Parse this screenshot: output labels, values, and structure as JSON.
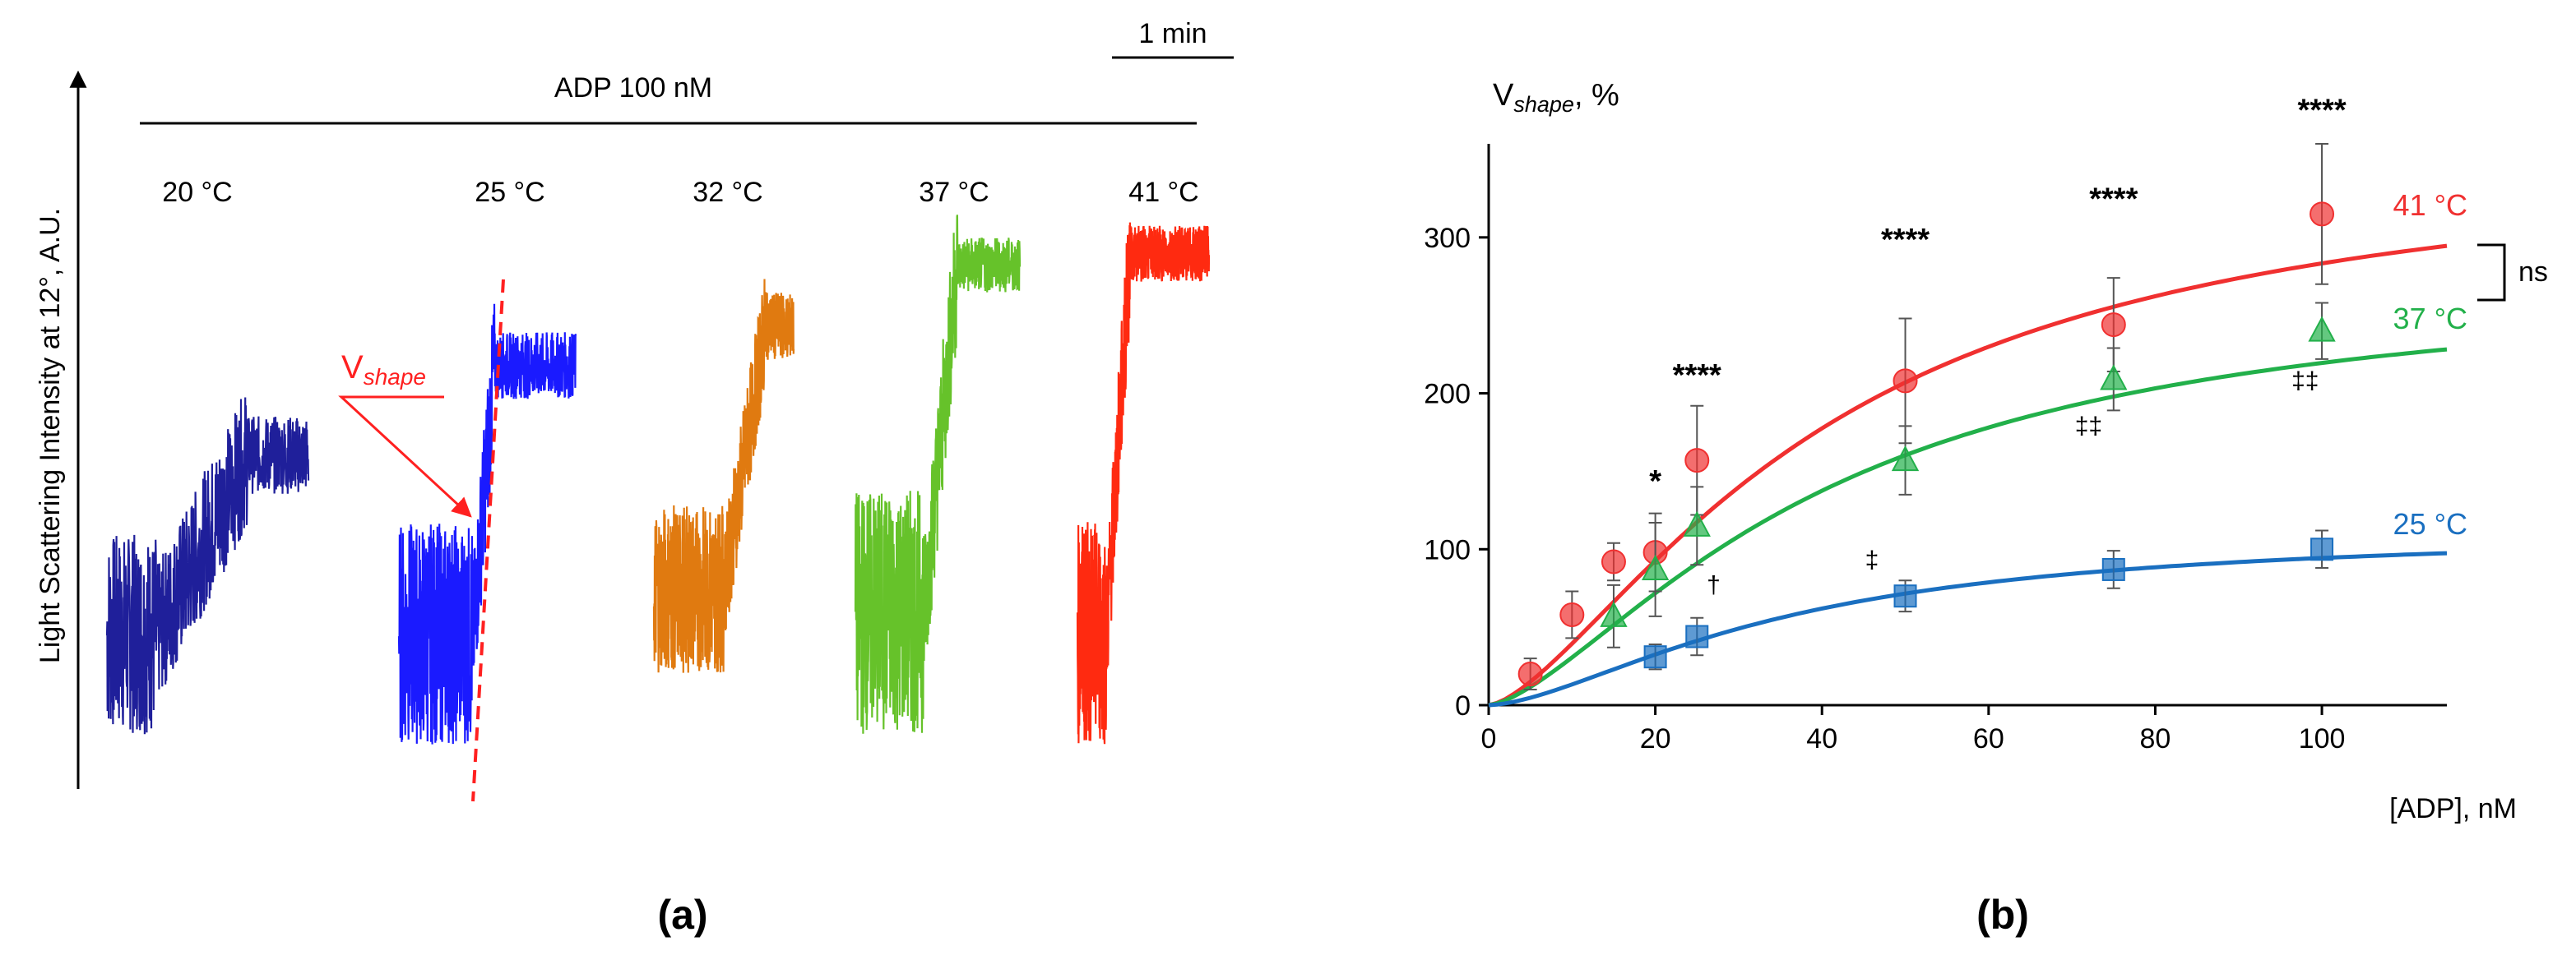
{
  "panel_a": {
    "label": "(a)",
    "y_axis_label": "Light Scattering Intensity  at 12°, A.U.",
    "stimulus_label": "ADP 100 nM",
    "scale_bar_label": "1 min",
    "vshape_label_main": "V",
    "vshape_label_sub": "shape"
  },
  "panel_b": {
    "label": "(b)",
    "ns_label": "ns"
  },
  "chart_data": [
    {
      "type": "line",
      "title": "",
      "description_units": "arbitrary light-scattering units",
      "ylabel": "Light Scattering Intensity  at 12°, A.U.",
      "annotation": "ADP 100 nM",
      "series": [
        {
          "name": "20 °C",
          "color": "#1f1f9a",
          "baseline": 0.3,
          "plateau": 0.62,
          "onset": 0.25,
          "rise_duration": 0.45,
          "noise_before": 0.18,
          "noise_after": 0.07
        },
        {
          "name": "25 °C",
          "color": "#1a1aff",
          "baseline": 0.3,
          "plateau": 0.78,
          "onset": 0.42,
          "rise_duration": 0.12,
          "noise_before": 0.2,
          "noise_after": 0.06
        },
        {
          "name": "32 °C",
          "color": "#e07a10",
          "baseline": 0.38,
          "plateau": 0.85,
          "onset": 0.5,
          "rise_duration": 0.3,
          "noise_before": 0.15,
          "noise_after": 0.06
        },
        {
          "name": "37 °C",
          "color": "#66c22a",
          "baseline": 0.34,
          "plateau": 0.96,
          "onset": 0.42,
          "rise_duration": 0.2,
          "noise_before": 0.22,
          "noise_after": 0.05
        },
        {
          "name": "41 °C",
          "color": "#ff2a10",
          "baseline": 0.3,
          "plateau": 0.98,
          "onset": 0.22,
          "rise_duration": 0.18,
          "noise_before": 0.2,
          "noise_after": 0.05
        }
      ]
    },
    {
      "type": "scatter",
      "title": "",
      "ylabel_main": "V",
      "ylabel_sub": "shape",
      "ylabel_suffix": ", %",
      "xlabel": "[ADP], nM",
      "xlim": [
        0,
        115
      ],
      "ylim": [
        0,
        360
      ],
      "xticks": [
        0,
        20,
        40,
        60,
        80,
        100
      ],
      "yticks": [
        0,
        100,
        200,
        300
      ],
      "series": [
        {
          "name": "41 °C",
          "color": "#f03030",
          "marker": "circle",
          "x": [
            5,
            10,
            15,
            20,
            25,
            50,
            75,
            100
          ],
          "y": [
            20,
            58,
            92,
            98,
            157,
            208,
            244,
            315
          ],
          "err": [
            10,
            15,
            12,
            25,
            35,
            40,
            30,
            45
          ],
          "fit_vmax": 355,
          "fit_k": 40,
          "fit_n": 1.5
        },
        {
          "name": "37 °C",
          "color": "#22b04a",
          "marker": "triangle",
          "x": [
            15,
            20,
            25,
            50,
            75,
            100
          ],
          "y": [
            57,
            87,
            115,
            157,
            209,
            240
          ],
          "err": [
            20,
            30,
            25,
            22,
            20,
            18
          ],
          "fit_vmax": 275,
          "fit_k": 40,
          "fit_n": 1.5
        },
        {
          "name": "25 °C",
          "color": "#1a6fc0",
          "marker": "square",
          "x": [
            20,
            25,
            50,
            75,
            100
          ],
          "y": [
            31,
            44,
            70,
            87,
            100
          ],
          "err": [
            8,
            12,
            10,
            12,
            12
          ],
          "fit_vmax": 112,
          "fit_k": 35,
          "fit_n": 1.6
        }
      ],
      "annotations": [
        {
          "text": "****",
          "x": 100,
          "y": 375,
          "kind": "star"
        },
        {
          "text": "****",
          "x": 75,
          "y": 318,
          "kind": "star"
        },
        {
          "text": "****",
          "x": 50,
          "y": 292,
          "kind": "star"
        },
        {
          "text": "****",
          "x": 25,
          "y": 205,
          "kind": "star"
        },
        {
          "text": "*",
          "x": 20,
          "y": 137,
          "kind": "star"
        },
        {
          "text": "‡",
          "x": 46,
          "y": 88,
          "kind": "dagger"
        },
        {
          "text": "‡‡",
          "x": 72,
          "y": 174,
          "kind": "dagger"
        },
        {
          "text": "‡‡",
          "x": 98,
          "y": 203,
          "kind": "dagger"
        },
        {
          "text": "†",
          "x": 27,
          "y": 72,
          "kind": "dagger"
        }
      ],
      "comparison_bracket": {
        "between": [
          "41 °C",
          "37 °C"
        ],
        "label": "ns"
      }
    }
  ]
}
